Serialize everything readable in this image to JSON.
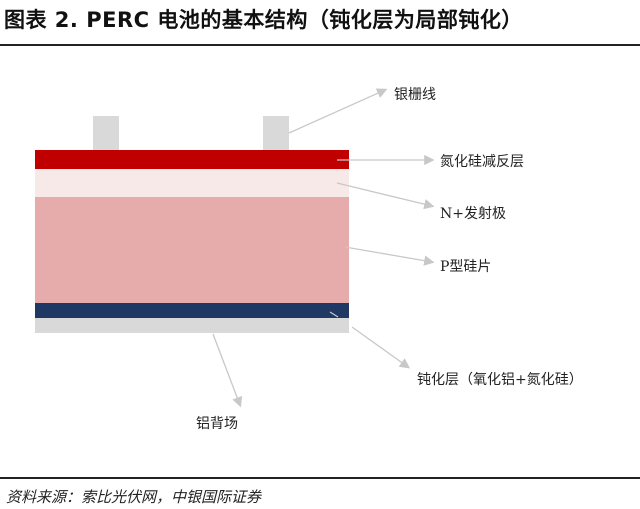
{
  "title": "图表 2. PERC 电池的基本结构（钝化层为局部钝化）",
  "labels": {
    "silver_grid": "银栅线",
    "sin_ar": "氮化硅减反层",
    "n_emitter": "N+发射极",
    "p_wafer": "P型硅片",
    "passivation": "钝化层（氧化铝+氮化硅）",
    "al_bsf": "铝背场"
  },
  "source": "资料来源：索比光伏网，中银国际证券",
  "colors": {
    "silver_grid": "#d9d9d9",
    "sin_ar": "#c00000",
    "n_emitter": "#f8e9e9",
    "p_wafer": "#e6acac",
    "passivation": "#1f3864",
    "al_bsf": "#d9d9d9",
    "leader_line": "#c8c8c8"
  }
}
